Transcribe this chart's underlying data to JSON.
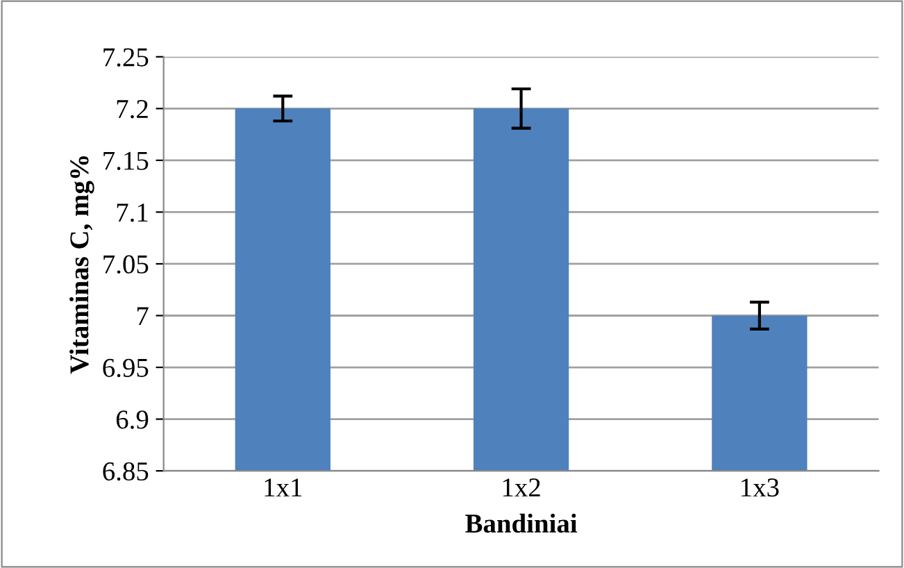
{
  "chart_data": {
    "type": "bar",
    "xlabel": "Bandiniai",
    "ylabel": "Vitaminas C, mg%",
    "categories": [
      "1x1",
      "1x2",
      "1x3"
    ],
    "values": [
      7.2,
      7.2,
      7.0
    ],
    "errors": [
      0.012,
      0.019,
      0.013
    ],
    "color": "#4f81bd",
    "ylim": [
      6.85,
      7.25
    ],
    "yticks": [
      {
        "value": 6.85,
        "label": "6.85"
      },
      {
        "value": 6.9,
        "label": "6.9"
      },
      {
        "value": 6.95,
        "label": "6.95"
      },
      {
        "value": 7.0,
        "label": "7"
      },
      {
        "value": 7.05,
        "label": "7.05"
      },
      {
        "value": 7.1,
        "label": "7.1"
      },
      {
        "value": 7.15,
        "label": "7.15"
      },
      {
        "value": 7.2,
        "label": "7.2"
      },
      {
        "value": 7.25,
        "label": "7.25"
      }
    ],
    "grid": "y",
    "legend": false
  }
}
